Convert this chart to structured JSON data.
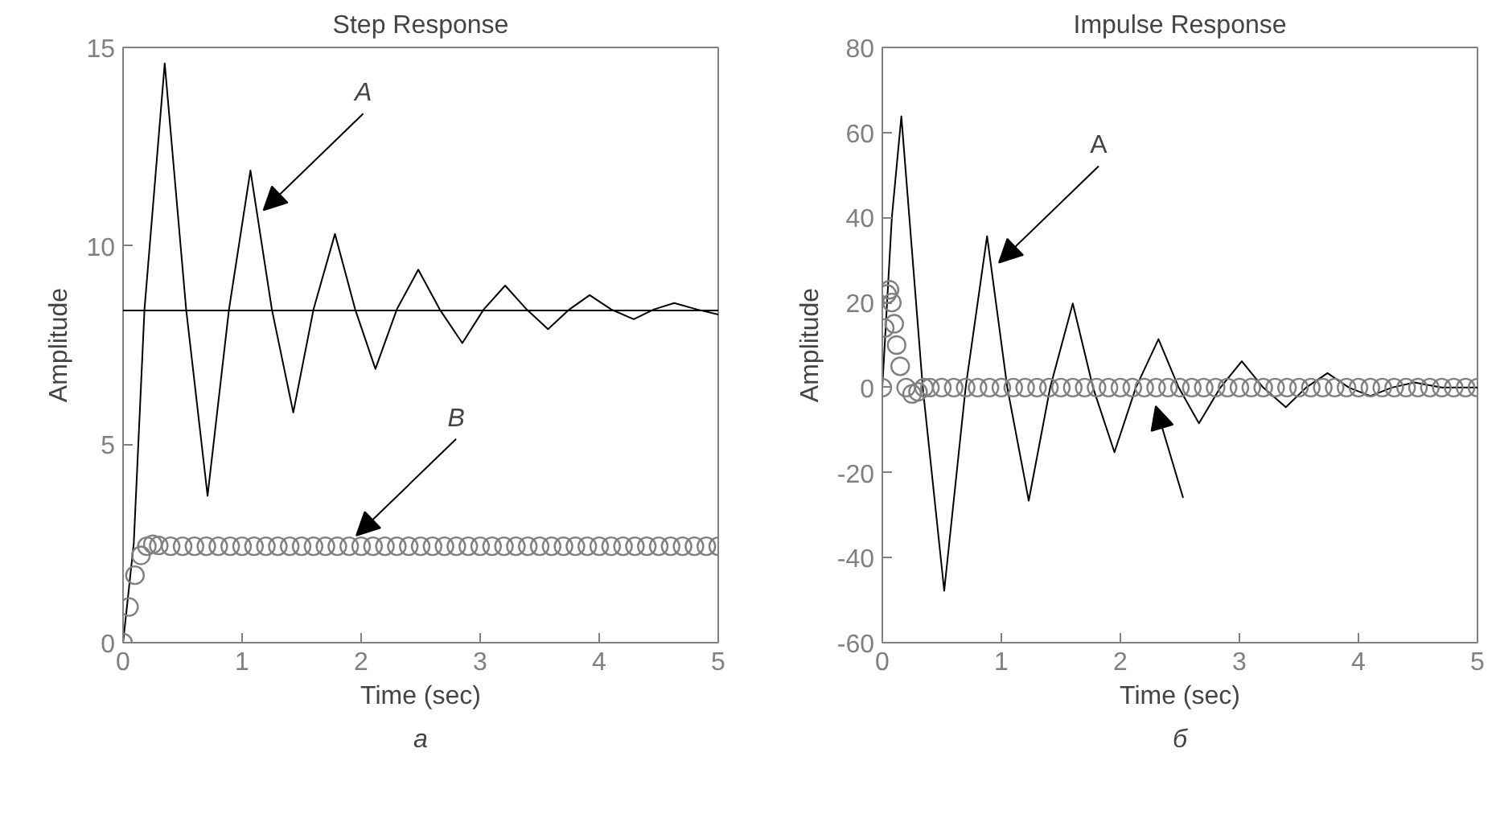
{
  "chart_data": [
    {
      "type": "line",
      "title": "Step Response",
      "xlabel": "Time (sec)",
      "ylabel": "Amplitude",
      "xlim": [
        0,
        5
      ],
      "ylim": [
        0,
        15
      ],
      "xticks": [
        0,
        1,
        2,
        3,
        4,
        5
      ],
      "yticks": [
        0,
        5,
        10,
        15
      ],
      "grid": false,
      "ref_lines": [
        {
          "axis": "y",
          "value": 8.37,
          "color": "#000000"
        }
      ],
      "annotations": [
        {
          "text": "A",
          "x": 1.18,
          "y": 10.9
        },
        {
          "text": "B",
          "x": 1.96,
          "y": 2.7
        },
        "а"
      ],
      "series": [
        {
          "marker": "none",
          "color": "#000000",
          "x": [
            0,
            0.09,
            0.18,
            0.35,
            0.53,
            0.71,
            0.89,
            1.07,
            1.25,
            1.43,
            1.6,
            1.78,
            1.95,
            2.12,
            2.3,
            2.48,
            2.66,
            2.85,
            3.03,
            3.21,
            3.39,
            3.57,
            3.75,
            3.92,
            4.1,
            4.29,
            4.46,
            4.63,
            4.82,
            5.0
          ],
          "values": [
            0,
            2.5,
            8.4,
            14.6,
            8.4,
            3.7,
            8.4,
            11.9,
            8.4,
            5.8,
            8.4,
            10.3,
            8.4,
            6.9,
            8.4,
            9.4,
            8.4,
            7.55,
            8.4,
            9.0,
            8.4,
            7.9,
            8.4,
            8.76,
            8.4,
            8.15,
            8.4,
            8.56,
            8.4,
            8.27
          ]
        },
        {
          "type": "scatter",
          "marker": "circle",
          "color": "#808080",
          "x": [
            0,
            0.05,
            0.1,
            0.15,
            0.2,
            0.25,
            0.3,
            0.4,
            0.5,
            0.6,
            0.7,
            0.8,
            0.9,
            1.0,
            1.1,
            1.2,
            1.3,
            1.4,
            1.5,
            1.6,
            1.7,
            1.8,
            1.9,
            2.0,
            2.1,
            2.2,
            2.3,
            2.4,
            2.5,
            2.6,
            2.7,
            2.8,
            2.9,
            3.0,
            3.1,
            3.2,
            3.3,
            3.4,
            3.5,
            3.6,
            3.7,
            3.8,
            3.9,
            4.0,
            4.1,
            4.2,
            4.3,
            4.4,
            4.5,
            4.6,
            4.7,
            4.8,
            4.9,
            5.0
          ],
          "values": [
            0,
            0.9,
            1.7,
            2.2,
            2.43,
            2.48,
            2.45,
            2.43,
            2.43,
            2.43,
            2.43,
            2.43,
            2.43,
            2.43,
            2.43,
            2.43,
            2.43,
            2.43,
            2.43,
            2.43,
            2.43,
            2.43,
            2.43,
            2.43,
            2.43,
            2.43,
            2.43,
            2.43,
            2.43,
            2.43,
            2.43,
            2.43,
            2.43,
            2.43,
            2.43,
            2.43,
            2.43,
            2.43,
            2.43,
            2.43,
            2.43,
            2.43,
            2.43,
            2.43,
            2.43,
            2.43,
            2.43,
            2.43,
            2.43,
            2.43,
            2.43,
            2.43,
            2.43,
            2.43
          ]
        }
      ]
    },
    {
      "type": "line",
      "title": "Impulse Response",
      "xlabel": "Time (sec)",
      "ylabel": "Amplitude",
      "xlim": [
        0,
        5
      ],
      "ylim": [
        -60,
        80
      ],
      "xticks": [
        0,
        1,
        2,
        3,
        4,
        5
      ],
      "yticks": [
        -60,
        -40,
        -20,
        0,
        20,
        40,
        60,
        80
      ],
      "grid": false,
      "annotations": [
        {
          "text": "A",
          "x": 0.98,
          "y": 29.4
        },
        "б"
      ],
      "series": [
        {
          "marker": "none",
          "color": "#000000",
          "x": [
            0,
            0.08,
            0.16,
            0.34,
            0.52,
            0.7,
            0.88,
            1.05,
            1.23,
            1.41,
            1.6,
            1.77,
            1.95,
            2.13,
            2.32,
            2.49,
            2.66,
            2.84,
            3.02,
            3.2,
            3.39,
            3.56,
            3.74,
            3.92,
            4.1,
            4.28,
            4.47,
            4.7,
            5.0
          ],
          "values": [
            0,
            40,
            63.8,
            0,
            -47.8,
            0,
            35.6,
            0,
            -26.6,
            0,
            19.8,
            0,
            -15.2,
            0,
            11.4,
            0,
            -8.4,
            0,
            6.2,
            0,
            -4.6,
            0,
            3.4,
            0,
            -2,
            0,
            1.2,
            0,
            0
          ]
        },
        {
          "type": "scatter",
          "marker": "circle",
          "color": "#808080",
          "x": [
            0,
            0.02,
            0.04,
            0.06,
            0.08,
            0.1,
            0.12,
            0.15,
            0.2,
            0.25,
            0.3,
            0.35,
            0.4,
            0.5,
            0.6,
            0.7,
            0.8,
            0.9,
            1.0,
            1.1,
            1.2,
            1.3,
            1.4,
            1.5,
            1.6,
            1.7,
            1.8,
            1.9,
            2.0,
            2.1,
            2.2,
            2.3,
            2.4,
            2.5,
            2.6,
            2.7,
            2.8,
            2.9,
            3.0,
            3.1,
            3.2,
            3.3,
            3.4,
            3.5,
            3.6,
            3.7,
            3.8,
            3.9,
            4.0,
            4.1,
            4.2,
            4.3,
            4.4,
            4.5,
            4.6,
            4.7,
            4.8,
            4.9,
            5.0
          ],
          "values": [
            0,
            14,
            22,
            23,
            20,
            15,
            10,
            5,
            0,
            -1.5,
            -1,
            0,
            0,
            0,
            0,
            0,
            0,
            0,
            0,
            0,
            0,
            0,
            0,
            0,
            0,
            0,
            0,
            0,
            0,
            0,
            0,
            0,
            0,
            0,
            0,
            0,
            0,
            0,
            0,
            0,
            0,
            0,
            0,
            0,
            0,
            0,
            0,
            0,
            0,
            0,
            0,
            0,
            0,
            0,
            0,
            0,
            0,
            0,
            0
          ]
        }
      ]
    }
  ]
}
